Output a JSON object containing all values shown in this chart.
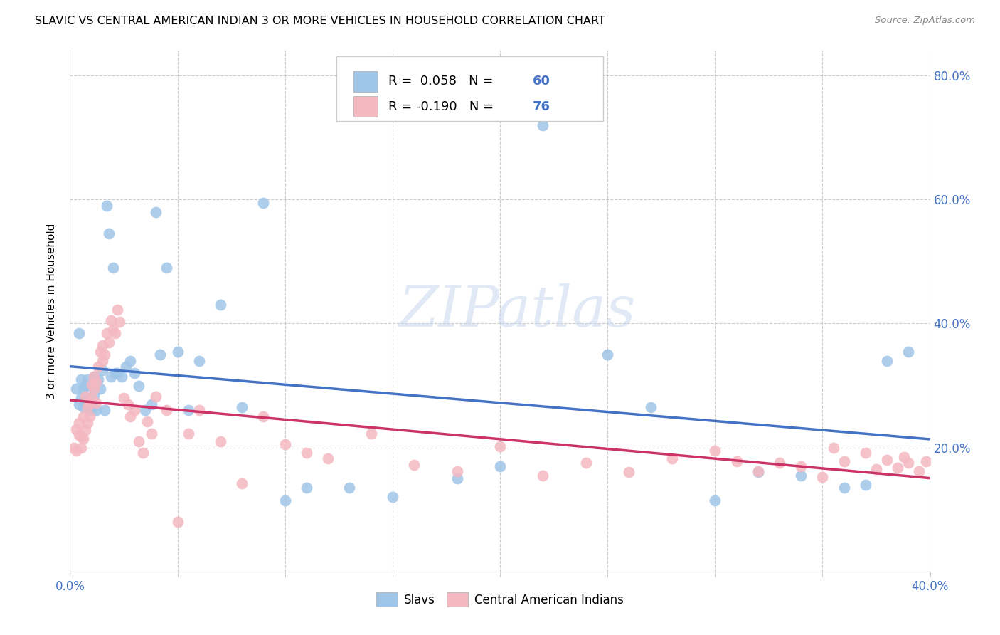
{
  "title": "SLAVIC VS CENTRAL AMERICAN INDIAN 3 OR MORE VEHICLES IN HOUSEHOLD CORRELATION CHART",
  "source": "Source: ZipAtlas.com",
  "ylabel": "3 or more Vehicles in Household",
  "right_yticks": [
    0.2,
    0.4,
    0.6,
    0.8
  ],
  "right_yticklabels": [
    "20.0%",
    "40.0%",
    "60.0%",
    "80.0%"
  ],
  "xlim": [
    0.0,
    0.4
  ],
  "ylim": [
    0.0,
    0.84
  ],
  "R_slavs": 0.058,
  "N_slavs": 60,
  "R_central": -0.19,
  "N_central": 76,
  "slavs_color": "#9fc5e8",
  "central_color": "#f4b8c1",
  "slavs_line_color": "#4472c4",
  "central_line_color": "#cc3366",
  "legend_label_slavs": "Slavs",
  "legend_label_central": "Central American Indians",
  "watermark": "ZIPatlas",
  "slavs_x": [
    0.003,
    0.004,
    0.004,
    0.005,
    0.005,
    0.006,
    0.006,
    0.007,
    0.007,
    0.008,
    0.008,
    0.009,
    0.009,
    0.01,
    0.01,
    0.011,
    0.011,
    0.012,
    0.013,
    0.014,
    0.015,
    0.016,
    0.017,
    0.018,
    0.019,
    0.02,
    0.021,
    0.022,
    0.024,
    0.026,
    0.028,
    0.03,
    0.032,
    0.035,
    0.038,
    0.04,
    0.042,
    0.045,
    0.05,
    0.055,
    0.06,
    0.07,
    0.08,
    0.09,
    0.1,
    0.11,
    0.13,
    0.15,
    0.18,
    0.2,
    0.22,
    0.25,
    0.27,
    0.3,
    0.32,
    0.34,
    0.36,
    0.37,
    0.38,
    0.39
  ],
  "slavs_y": [
    0.295,
    0.385,
    0.27,
    0.31,
    0.28,
    0.295,
    0.265,
    0.275,
    0.3,
    0.268,
    0.31,
    0.26,
    0.28,
    0.265,
    0.3,
    0.285,
    0.315,
    0.26,
    0.31,
    0.295,
    0.325,
    0.26,
    0.59,
    0.545,
    0.315,
    0.49,
    0.32,
    0.32,
    0.315,
    0.33,
    0.34,
    0.32,
    0.3,
    0.26,
    0.27,
    0.58,
    0.35,
    0.49,
    0.355,
    0.26,
    0.34,
    0.43,
    0.265,
    0.595,
    0.115,
    0.135,
    0.135,
    0.12,
    0.15,
    0.17,
    0.72,
    0.35,
    0.265,
    0.115,
    0.16,
    0.155,
    0.135,
    0.14,
    0.34,
    0.355
  ],
  "central_x": [
    0.002,
    0.003,
    0.003,
    0.004,
    0.004,
    0.005,
    0.005,
    0.006,
    0.006,
    0.007,
    0.007,
    0.008,
    0.008,
    0.009,
    0.009,
    0.01,
    0.01,
    0.011,
    0.011,
    0.012,
    0.012,
    0.013,
    0.014,
    0.015,
    0.015,
    0.016,
    0.017,
    0.018,
    0.019,
    0.02,
    0.021,
    0.022,
    0.023,
    0.025,
    0.027,
    0.028,
    0.03,
    0.032,
    0.034,
    0.036,
    0.038,
    0.04,
    0.045,
    0.05,
    0.055,
    0.06,
    0.07,
    0.08,
    0.09,
    0.1,
    0.11,
    0.12,
    0.14,
    0.16,
    0.18,
    0.2,
    0.22,
    0.24,
    0.26,
    0.28,
    0.3,
    0.31,
    0.32,
    0.33,
    0.34,
    0.35,
    0.355,
    0.36,
    0.37,
    0.375,
    0.38,
    0.385,
    0.388,
    0.39,
    0.395,
    0.398
  ],
  "central_y": [
    0.2,
    0.23,
    0.195,
    0.22,
    0.24,
    0.2,
    0.218,
    0.25,
    0.215,
    0.228,
    0.282,
    0.265,
    0.24,
    0.272,
    0.25,
    0.302,
    0.28,
    0.315,
    0.295,
    0.272,
    0.305,
    0.33,
    0.355,
    0.34,
    0.365,
    0.35,
    0.385,
    0.37,
    0.405,
    0.39,
    0.385,
    0.422,
    0.403,
    0.28,
    0.27,
    0.25,
    0.26,
    0.21,
    0.192,
    0.242,
    0.222,
    0.282,
    0.26,
    0.08,
    0.222,
    0.26,
    0.21,
    0.142,
    0.25,
    0.205,
    0.192,
    0.182,
    0.222,
    0.172,
    0.162,
    0.202,
    0.155,
    0.175,
    0.16,
    0.182,
    0.195,
    0.178,
    0.162,
    0.175,
    0.17,
    0.152,
    0.2,
    0.178,
    0.192,
    0.165,
    0.18,
    0.168,
    0.185,
    0.175,
    0.162,
    0.178
  ]
}
